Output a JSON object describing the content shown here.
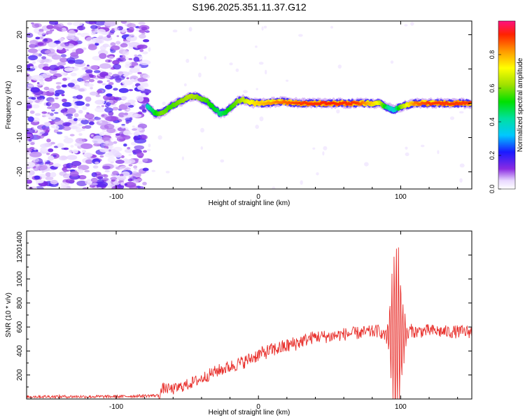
{
  "figure_title": "S196.2025.351.11.37.G12",
  "chart_data": [
    {
      "type": "heatmap",
      "title": "S196.2025.351.11.37.G12",
      "xlabel": "Height of straight line (km)",
      "ylabel": "Frequency (Hz)",
      "xlim": [
        -163,
        150
      ],
      "ylim": [
        -25,
        24
      ],
      "x_ticks": [
        -100,
        0,
        100
      ],
      "y_ticks": [
        -20,
        -10,
        0,
        10,
        20
      ],
      "noise_region_x": [
        -163,
        -78
      ],
      "ridge": {
        "x": [
          -78,
          -73,
          -68,
          -62,
          -55,
          -48,
          -42,
          -36,
          -31,
          -27,
          -23,
          -19,
          -15,
          -11,
          -7,
          -3,
          5,
          15,
          30,
          50,
          70,
          85,
          90,
          95,
          100,
          110,
          120,
          150
        ],
        "frequency": [
          -1,
          -3,
          -3,
          -1,
          0.5,
          2,
          1.8,
          0.5,
          -1.5,
          -3,
          -2.5,
          -1,
          0.5,
          1,
          0.5,
          0,
          0,
          0.5,
          0,
          0,
          0,
          0,
          -1,
          -2,
          -1,
          0,
          0,
          0
        ],
        "amplitude": [
          0.4,
          0.5,
          0.6,
          0.55,
          0.6,
          0.65,
          0.6,
          0.55,
          0.5,
          0.45,
          0.5,
          0.55,
          0.6,
          0.65,
          0.7,
          0.75,
          0.8,
          0.85,
          0.9,
          0.92,
          0.9,
          0.7,
          0.45,
          0.35,
          0.6,
          0.85,
          0.9,
          0.9
        ]
      },
      "colorbar": {
        "label": "Normalized spectral amplitude",
        "range": [
          0,
          1
        ],
        "ticks": [
          "0.0",
          "0.2",
          "0.4",
          "0.6",
          "0.8"
        ]
      }
    },
    {
      "type": "line",
      "xlabel": "Height of straight line (km)",
      "ylabel": "SNR (10 * v/v)",
      "xlim": [
        -163,
        150
      ],
      "ylim": [
        0,
        1400
      ],
      "x_ticks": [
        -100,
        0,
        100
      ],
      "y_ticks": [
        200,
        400,
        600,
        800,
        1000,
        1200,
        1400
      ],
      "series_color": "#e8302c",
      "envelope": {
        "x": [
          -163,
          -100,
          -70,
          -67,
          -60,
          -50,
          -40,
          -30,
          -20,
          -10,
          0,
          10,
          20,
          30,
          40,
          50,
          60,
          70,
          80,
          85,
          90,
          93,
          95,
          97,
          100,
          103,
          106,
          110,
          120,
          130,
          140,
          150
        ],
        "snr": [
          20,
          20,
          30,
          90,
          80,
          120,
          170,
          230,
          270,
          310,
          370,
          410,
          440,
          480,
          520,
          520,
          540,
          550,
          560,
          570,
          620,
          760,
          950,
          1100,
          850,
          700,
          580,
          560,
          570,
          560,
          560,
          560
        ]
      }
    }
  ]
}
